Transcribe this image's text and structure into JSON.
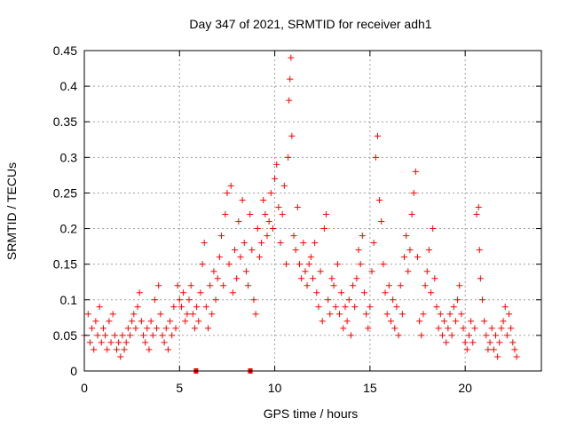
{
  "chart_data": {
    "type": "scatter",
    "title": "Day 347 of 2021, SRMTID for receiver adh1",
    "xlabel": "GPS time / hours",
    "ylabel": "SRMTID / TECUs",
    "xlim": [
      0,
      24
    ],
    "ylim": [
      0,
      0.45
    ],
    "x_ticks": [
      0,
      5,
      10,
      15,
      20
    ],
    "x_tick_labels": [
      "0",
      "5",
      "10",
      "15",
      "20"
    ],
    "y_ticks": [
      0,
      0.05,
      0.1,
      0.15,
      0.2,
      0.25,
      0.3,
      0.35,
      0.4,
      0.45
    ],
    "y_tick_labels": [
      "0",
      "0.05",
      "0.1",
      "0.15",
      "0.2",
      "0.25",
      "0.3",
      "0.35",
      "0.4",
      "0.45"
    ],
    "grid": true,
    "series": [
      {
        "name": "SRMTID",
        "color": "#ff0000",
        "marker": "+",
        "points": [
          [
            0.0,
            0.05
          ],
          [
            0.2,
            0.08
          ],
          [
            0.3,
            0.04
          ],
          [
            0.4,
            0.06
          ],
          [
            0.5,
            0.03
          ],
          [
            0.6,
            0.07
          ],
          [
            0.7,
            0.05
          ],
          [
            0.8,
            0.09
          ],
          [
            0.9,
            0.04
          ],
          [
            1.0,
            0.06
          ],
          [
            1.1,
            0.05
          ],
          [
            1.2,
            0.03
          ],
          [
            1.3,
            0.07
          ],
          [
            1.4,
            0.04
          ],
          [
            1.5,
            0.08
          ],
          [
            1.6,
            0.05
          ],
          [
            1.7,
            0.03
          ],
          [
            1.8,
            0.04
          ],
          [
            1.9,
            0.02
          ],
          [
            2.0,
            0.05
          ],
          [
            2.1,
            0.03
          ],
          [
            2.2,
            0.04
          ],
          [
            2.3,
            0.06
          ],
          [
            2.4,
            0.05
          ],
          [
            2.5,
            0.07
          ],
          [
            2.6,
            0.08
          ],
          [
            2.7,
            0.06
          ],
          [
            2.8,
            0.09
          ],
          [
            2.9,
            0.11
          ],
          [
            3.0,
            0.07
          ],
          [
            3.1,
            0.05
          ],
          [
            3.2,
            0.04
          ],
          [
            3.3,
            0.06
          ],
          [
            3.4,
            0.03
          ],
          [
            3.5,
            0.07
          ],
          [
            3.6,
            0.05
          ],
          [
            3.7,
            0.1
          ],
          [
            3.8,
            0.06
          ],
          [
            3.9,
            0.12
          ],
          [
            4.0,
            0.08
          ],
          [
            4.1,
            0.05
          ],
          [
            4.2,
            0.04
          ],
          [
            4.3,
            0.06
          ],
          [
            4.4,
            0.03
          ],
          [
            4.5,
            0.07
          ],
          [
            4.6,
            0.05
          ],
          [
            4.7,
            0.09
          ],
          [
            4.8,
            0.06
          ],
          [
            4.9,
            0.12
          ],
          [
            5.0,
            0.1
          ],
          [
            5.1,
            0.09
          ],
          [
            5.2,
            0.11
          ],
          [
            5.3,
            0.07
          ],
          [
            5.4,
            0.08
          ],
          [
            5.5,
            0.1
          ],
          [
            5.6,
            0.12
          ],
          [
            5.7,
            0.08
          ],
          [
            5.8,
            0.06
          ],
          [
            5.9,
            0.09
          ],
          [
            6.0,
            0.07
          ],
          [
            6.1,
            0.11
          ],
          [
            6.2,
            0.15
          ],
          [
            6.3,
            0.18
          ],
          [
            6.4,
            0.09
          ],
          [
            6.5,
            0.06
          ],
          [
            6.6,
            0.12
          ],
          [
            6.7,
            0.08
          ],
          [
            6.8,
            0.14
          ],
          [
            6.9,
            0.1
          ],
          [
            7.0,
            0.13
          ],
          [
            7.1,
            0.16
          ],
          [
            7.2,
            0.19
          ],
          [
            7.3,
            0.12
          ],
          [
            7.4,
            0.22
          ],
          [
            7.5,
            0.25
          ],
          [
            7.6,
            0.15
          ],
          [
            7.7,
            0.26
          ],
          [
            7.8,
            0.11
          ],
          [
            7.9,
            0.17
          ],
          [
            8.0,
            0.13
          ],
          [
            8.1,
            0.21
          ],
          [
            8.2,
            0.16
          ],
          [
            8.3,
            0.24
          ],
          [
            8.4,
            0.18
          ],
          [
            8.5,
            0.14
          ],
          [
            8.6,
            0.12
          ],
          [
            8.7,
            0.22
          ],
          [
            8.8,
            0.17
          ],
          [
            8.9,
            0.1
          ],
          [
            9.0,
            0.08
          ],
          [
            9.1,
            0.2
          ],
          [
            9.2,
            0.16
          ],
          [
            9.3,
            0.18
          ],
          [
            9.4,
            0.24
          ],
          [
            9.5,
            0.22
          ],
          [
            9.6,
            0.19
          ],
          [
            9.7,
            0.21
          ],
          [
            9.8,
            0.25
          ],
          [
            9.9,
            0.2
          ],
          [
            10.0,
            0.27
          ],
          [
            10.1,
            0.29
          ],
          [
            10.2,
            0.23
          ],
          [
            10.3,
            0.18
          ],
          [
            10.4,
            0.22
          ],
          [
            10.5,
            0.26
          ],
          [
            10.6,
            0.15
          ],
          [
            10.7,
            0.3
          ],
          [
            10.75,
            0.38
          ],
          [
            10.8,
            0.41
          ],
          [
            10.85,
            0.44
          ],
          [
            10.9,
            0.33
          ],
          [
            11.0,
            0.19
          ],
          [
            11.1,
            0.17
          ],
          [
            11.2,
            0.23
          ],
          [
            11.3,
            0.15
          ],
          [
            11.4,
            0.13
          ],
          [
            11.5,
            0.18
          ],
          [
            11.6,
            0.14
          ],
          [
            11.7,
            0.12
          ],
          [
            11.8,
            0.15
          ],
          [
            11.9,
            0.16
          ],
          [
            12.0,
            0.13
          ],
          [
            12.1,
            0.18
          ],
          [
            12.2,
            0.11
          ],
          [
            12.3,
            0.09
          ],
          [
            12.4,
            0.14
          ],
          [
            12.5,
            0.07
          ],
          [
            12.6,
            0.2
          ],
          [
            12.7,
            0.22
          ],
          [
            12.8,
            0.1
          ],
          [
            12.9,
            0.08
          ],
          [
            13.0,
            0.13
          ],
          [
            13.1,
            0.12
          ],
          [
            13.2,
            0.09
          ],
          [
            13.3,
            0.15
          ],
          [
            13.4,
            0.08
          ],
          [
            13.5,
            0.11
          ],
          [
            13.6,
            0.06
          ],
          [
            13.7,
            0.09
          ],
          [
            13.8,
            0.07
          ],
          [
            13.9,
            0.1
          ],
          [
            14.0,
            0.05
          ],
          [
            14.1,
            0.12
          ],
          [
            14.2,
            0.09
          ],
          [
            14.3,
            0.13
          ],
          [
            14.4,
            0.17
          ],
          [
            14.5,
            0.15
          ],
          [
            14.6,
            0.19
          ],
          [
            14.7,
            0.11
          ],
          [
            14.8,
            0.08
          ],
          [
            14.9,
            0.06
          ],
          [
            15.0,
            0.09
          ],
          [
            15.1,
            0.14
          ],
          [
            15.2,
            0.18
          ],
          [
            15.3,
            0.3
          ],
          [
            15.4,
            0.33
          ],
          [
            15.5,
            0.24
          ],
          [
            15.6,
            0.21
          ],
          [
            15.7,
            0.15
          ],
          [
            15.8,
            0.11
          ],
          [
            15.9,
            0.08
          ],
          [
            16.0,
            0.12
          ],
          [
            16.1,
            0.07
          ],
          [
            16.2,
            0.1
          ],
          [
            16.3,
            0.06
          ],
          [
            16.4,
            0.09
          ],
          [
            16.5,
            0.05
          ],
          [
            16.6,
            0.12
          ],
          [
            16.7,
            0.08
          ],
          [
            16.8,
            0.16
          ],
          [
            16.9,
            0.19
          ],
          [
            17.0,
            0.14
          ],
          [
            17.1,
            0.17
          ],
          [
            17.2,
            0.22
          ],
          [
            17.3,
            0.25
          ],
          [
            17.4,
            0.28
          ],
          [
            17.5,
            0.16
          ],
          [
            17.6,
            0.07
          ],
          [
            17.7,
            0.05
          ],
          [
            17.8,
            0.08
          ],
          [
            17.9,
            0.12
          ],
          [
            18.0,
            0.14
          ],
          [
            18.1,
            0.17
          ],
          [
            18.2,
            0.11
          ],
          [
            18.3,
            0.2
          ],
          [
            18.4,
            0.13
          ],
          [
            18.5,
            0.09
          ],
          [
            18.6,
            0.06
          ],
          [
            18.7,
            0.08
          ],
          [
            18.8,
            0.05
          ],
          [
            18.9,
            0.07
          ],
          [
            19.0,
            0.04
          ],
          [
            19.1,
            0.06
          ],
          [
            19.2,
            0.08
          ],
          [
            19.3,
            0.05
          ],
          [
            19.4,
            0.09
          ],
          [
            19.5,
            0.07
          ],
          [
            19.6,
            0.1
          ],
          [
            19.7,
            0.12
          ],
          [
            19.8,
            0.08
          ],
          [
            19.9,
            0.06
          ],
          [
            20.0,
            0.04
          ],
          [
            20.1,
            0.03
          ],
          [
            20.2,
            0.05
          ],
          [
            20.3,
            0.07
          ],
          [
            20.4,
            0.04
          ],
          [
            20.5,
            0.06
          ],
          [
            20.6,
            0.22
          ],
          [
            20.7,
            0.23
          ],
          [
            20.75,
            0.17
          ],
          [
            20.8,
            0.13
          ],
          [
            20.9,
            0.1
          ],
          [
            21.0,
            0.07
          ],
          [
            21.1,
            0.05
          ],
          [
            21.2,
            0.03
          ],
          [
            21.3,
            0.04
          ],
          [
            21.4,
            0.06
          ],
          [
            21.5,
            0.03
          ],
          [
            21.6,
            0.05
          ],
          [
            21.7,
            0.02
          ],
          [
            21.8,
            0.04
          ],
          [
            21.9,
            0.06
          ],
          [
            22.0,
            0.07
          ],
          [
            22.1,
            0.09
          ],
          [
            22.2,
            0.05
          ],
          [
            22.3,
            0.08
          ],
          [
            22.4,
            0.06
          ],
          [
            22.5,
            0.04
          ],
          [
            22.6,
            0.03
          ],
          [
            22.7,
            0.02
          ]
        ],
        "segments": [
          [
            5.75,
            5.95,
            0
          ],
          [
            8.6,
            8.7,
            0
          ]
        ]
      }
    ]
  }
}
